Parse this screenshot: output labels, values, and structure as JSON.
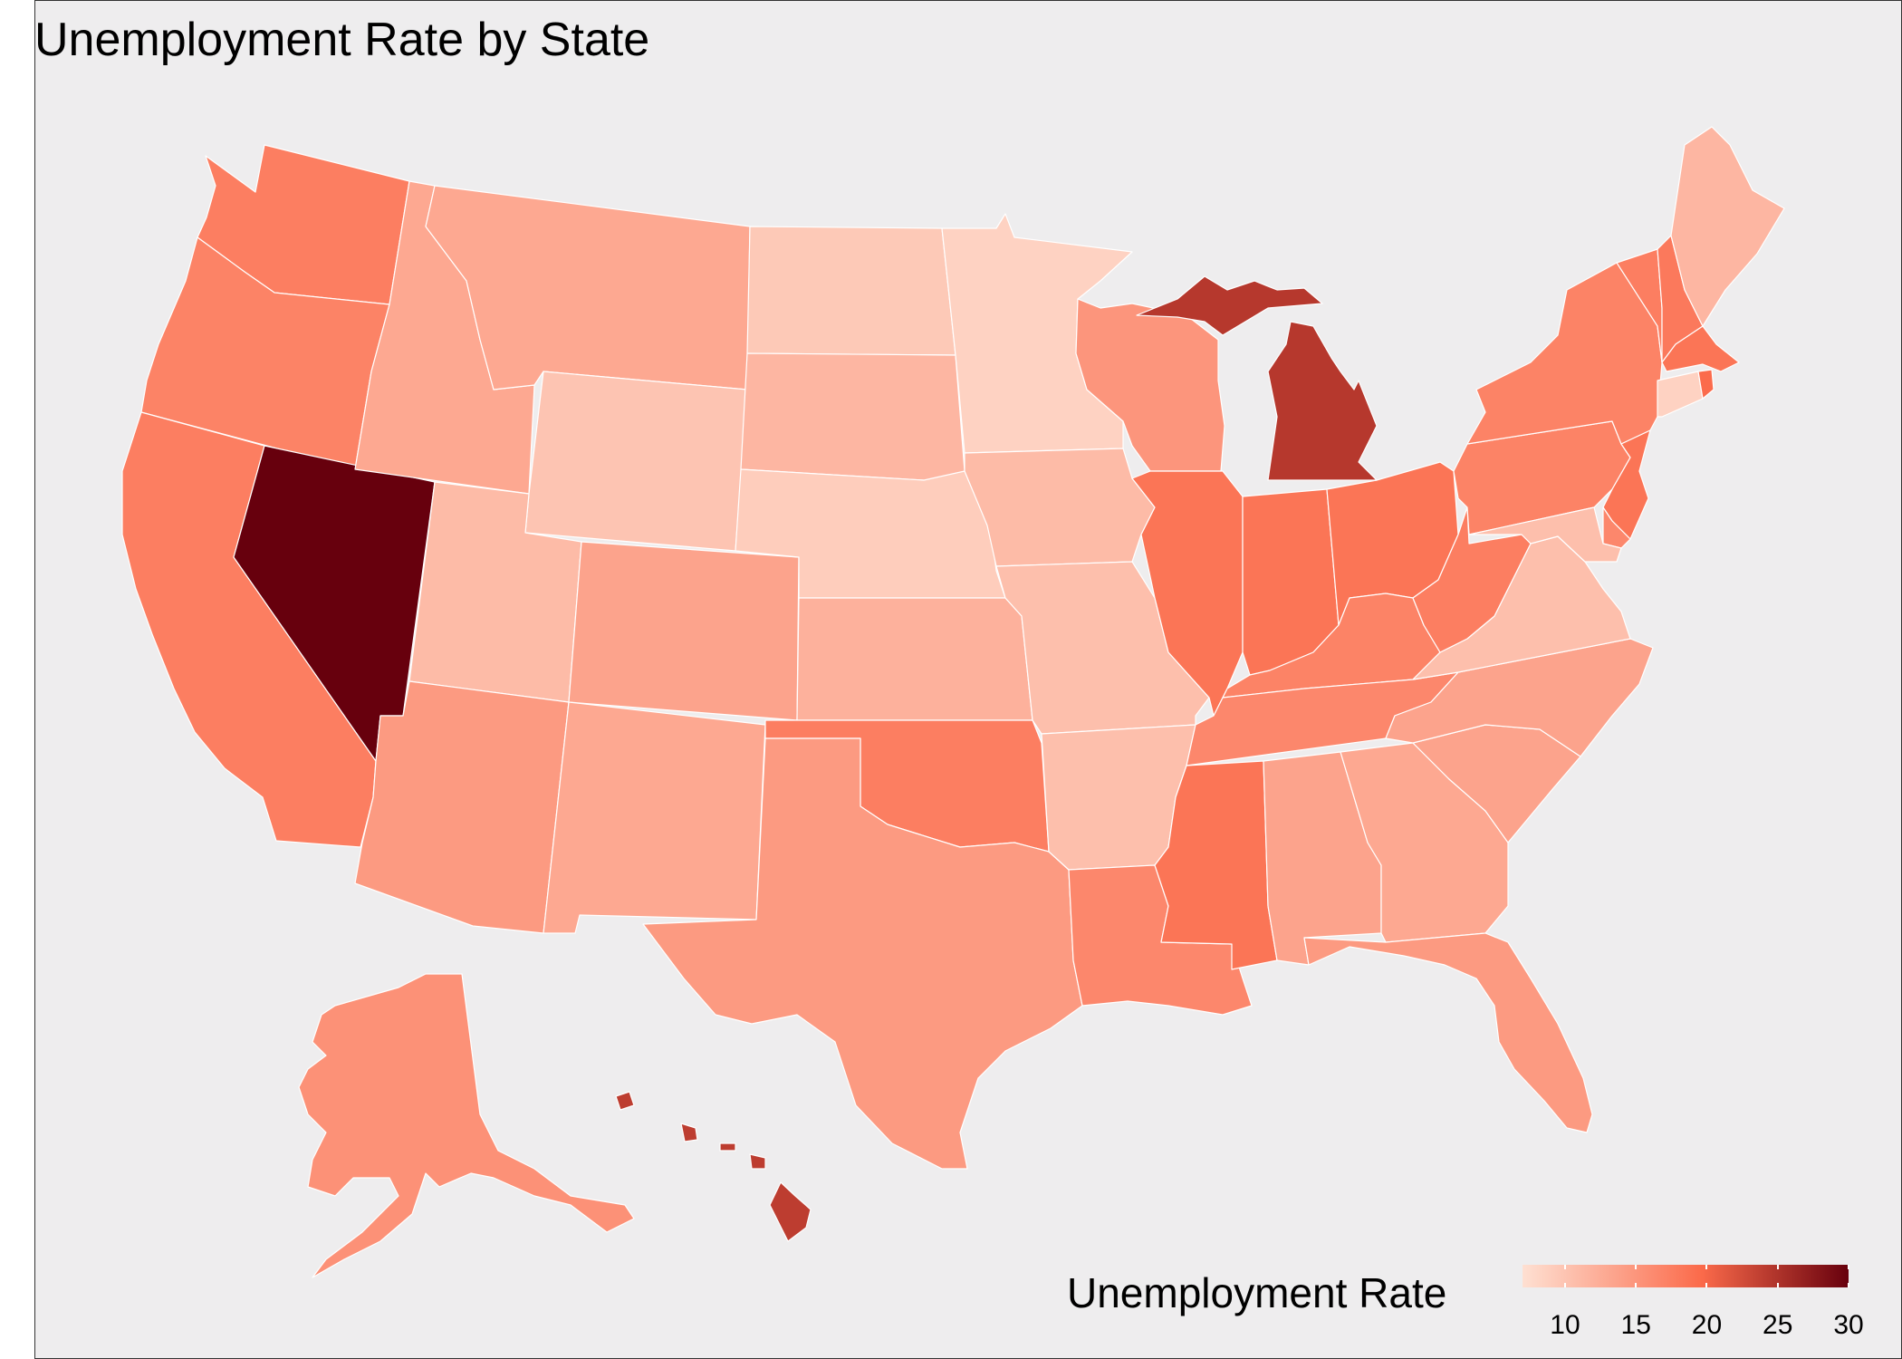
{
  "title": "Unemployment Rate by State",
  "legend": {
    "title": "Unemployment Rate",
    "ticks": [
      "10",
      "15",
      "20",
      "25",
      "30"
    ],
    "range": [
      7,
      30
    ],
    "low_color": "#fee0d2",
    "mid_color": "#fb6a4a",
    "high_color": "#67000d"
  },
  "background": "#eeedee",
  "border_color": "#ffffff",
  "states": {
    "AK": 15.5,
    "AL": 13.5,
    "AR": 10.5,
    "AZ": 14.5,
    "CA": 17.5,
    "CO": 13.5,
    "CT": 8.5,
    "DE": 16.5,
    "FL": 14.5,
    "GA": 13.0,
    "HI": 24.0,
    "IA": 11.0,
    "ID": 13.0,
    "IL": 18.5,
    "IN": 18.5,
    "KS": 12.0,
    "KY": 17.0,
    "LA": 16.5,
    "MA": 18.5,
    "MD": 10.5,
    "ME": 11.5,
    "MI": 24.5,
    "MN": 8.5,
    "MO": 10.5,
    "MS": 18.5,
    "MT": 13.0,
    "NC": 13.5,
    "ND": 9.5,
    "NE": 9.0,
    "NH": 18.0,
    "NJ": 18.5,
    "NM": 13.0,
    "NV": 30.0,
    "NY": 17.0,
    "OH": 18.5,
    "OK": 17.5,
    "OR": 17.0,
    "PA": 17.0,
    "RI": 19.5,
    "SC": 13.5,
    "SD": 11.5,
    "TN": 16.5,
    "TX": 14.5,
    "UT": 11.0,
    "VA": 10.5,
    "VT": 17.5,
    "WA": 17.5,
    "WI": 15.0,
    "WV": 17.5,
    "WY": 10.0
  }
}
